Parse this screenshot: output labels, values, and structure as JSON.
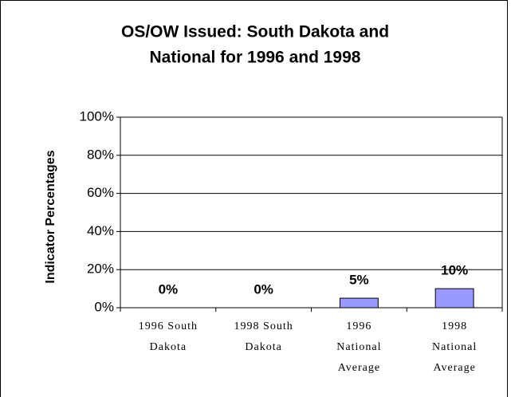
{
  "chart_data": {
    "type": "bar",
    "title": [
      "OS/OW Issued: South Dakota and",
      "National for 1996 and 1998"
    ],
    "y_label": "Indicator Percentages",
    "categories": [
      [
        "1996 South",
        "Dakota"
      ],
      [
        "1998 South",
        "Dakota"
      ],
      [
        "1996",
        "National",
        "Average"
      ],
      [
        "1998",
        "National",
        "Average"
      ]
    ],
    "values": [
      0,
      0,
      5,
      10
    ],
    "value_labels": [
      "0%",
      "0%",
      "5%",
      "10%"
    ],
    "color": "#9999ff",
    "ylim": [
      0,
      100
    ],
    "yticks": [
      {
        "value": 0,
        "label": "0%"
      },
      {
        "value": 20,
        "label": "20%"
      },
      {
        "value": 40,
        "label": "40%"
      },
      {
        "value": 60,
        "label": "60%"
      },
      {
        "value": 80,
        "label": "80%"
      },
      {
        "value": 100,
        "label": "100%"
      }
    ],
    "grid": true
  }
}
